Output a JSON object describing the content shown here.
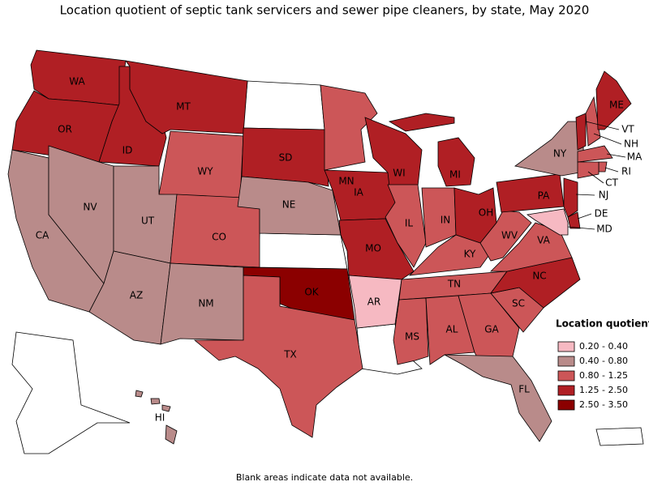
{
  "title": "Location quotient of septic tank servicers and sewer pipe cleaners, by state, May 2020",
  "legend": {
    "title": "Location quotient",
    "items": [
      {
        "label": "0.20 - 0.40",
        "color": "#f6b9c2"
      },
      {
        "label": "0.40 - 0.80",
        "color": "#b98b8a"
      },
      {
        "label": "0.80 - 1.25",
        "color": "#cc5658"
      },
      {
        "label": "1.25 - 2.50",
        "color": "#b01f24"
      },
      {
        "label": "2.50 - 3.50",
        "color": "#8b0000"
      }
    ]
  },
  "states": [
    {
      "abbr": "WA",
      "color": "#b01f24"
    },
    {
      "abbr": "OR",
      "color": "#b01f24"
    },
    {
      "abbr": "ID",
      "color": "#b01f24"
    },
    {
      "abbr": "MT",
      "color": "#b01f24"
    },
    {
      "abbr": "WY",
      "color": "#cc5658"
    },
    {
      "abbr": "CA",
      "color": "#b98b8a"
    },
    {
      "abbr": "NV",
      "color": "#b98b8a"
    },
    {
      "abbr": "UT",
      "color": "#b98b8a"
    },
    {
      "abbr": "AZ",
      "color": "#b98b8a"
    },
    {
      "abbr": "CO",
      "color": "#cc5658"
    },
    {
      "abbr": "NM",
      "color": "#b98b8a"
    },
    {
      "abbr": "SD",
      "color": "#b01f24"
    },
    {
      "abbr": "NE",
      "color": "#b98b8a"
    },
    {
      "abbr": "OK",
      "color": "#8b0000"
    },
    {
      "abbr": "TX",
      "color": "#cc5658"
    },
    {
      "abbr": "MN",
      "color": "#cc5658"
    },
    {
      "abbr": "IA",
      "color": "#b01f24"
    },
    {
      "abbr": "MO",
      "color": "#b01f24"
    },
    {
      "abbr": "AR",
      "color": "#f6b9c2"
    },
    {
      "abbr": "WI",
      "color": "#b01f24"
    },
    {
      "abbr": "IL",
      "color": "#cc5658"
    },
    {
      "abbr": "MI",
      "color": "#b01f24"
    },
    {
      "abbr": "IN",
      "color": "#cc5658"
    },
    {
      "abbr": "OH",
      "color": "#b01f24"
    },
    {
      "abbr": "KY",
      "color": "#cc5658"
    },
    {
      "abbr": "TN",
      "color": "#cc5658"
    },
    {
      "abbr": "MS",
      "color": "#cc5658"
    },
    {
      "abbr": "AL",
      "color": "#cc5658"
    },
    {
      "abbr": "GA",
      "color": "#cc5658"
    },
    {
      "abbr": "FL",
      "color": "#b98b8a"
    },
    {
      "abbr": "SC",
      "color": "#cc5658"
    },
    {
      "abbr": "NC",
      "color": "#b01f24"
    },
    {
      "abbr": "VA",
      "color": "#cc5658"
    },
    {
      "abbr": "WV",
      "color": "#cc5658"
    },
    {
      "abbr": "PA",
      "color": "#b01f24"
    },
    {
      "abbr": "NY",
      "color": "#b98b8a"
    },
    {
      "abbr": "VT",
      "color": "#b01f24"
    },
    {
      "abbr": "NH",
      "color": "#cc5658"
    },
    {
      "abbr": "ME",
      "color": "#b01f24"
    },
    {
      "abbr": "MA",
      "color": "#cc5658"
    },
    {
      "abbr": "RI",
      "color": "#cc5658"
    },
    {
      "abbr": "CT",
      "color": "#cc5658"
    },
    {
      "abbr": "NJ",
      "color": "#b01f24"
    },
    {
      "abbr": "DE",
      "color": "#b01f24"
    },
    {
      "abbr": "MD",
      "color": "#f6b9c2"
    },
    {
      "abbr": "HI",
      "color": "#b98b8a"
    }
  ],
  "footnote": "Blank areas indicate data not available."
}
